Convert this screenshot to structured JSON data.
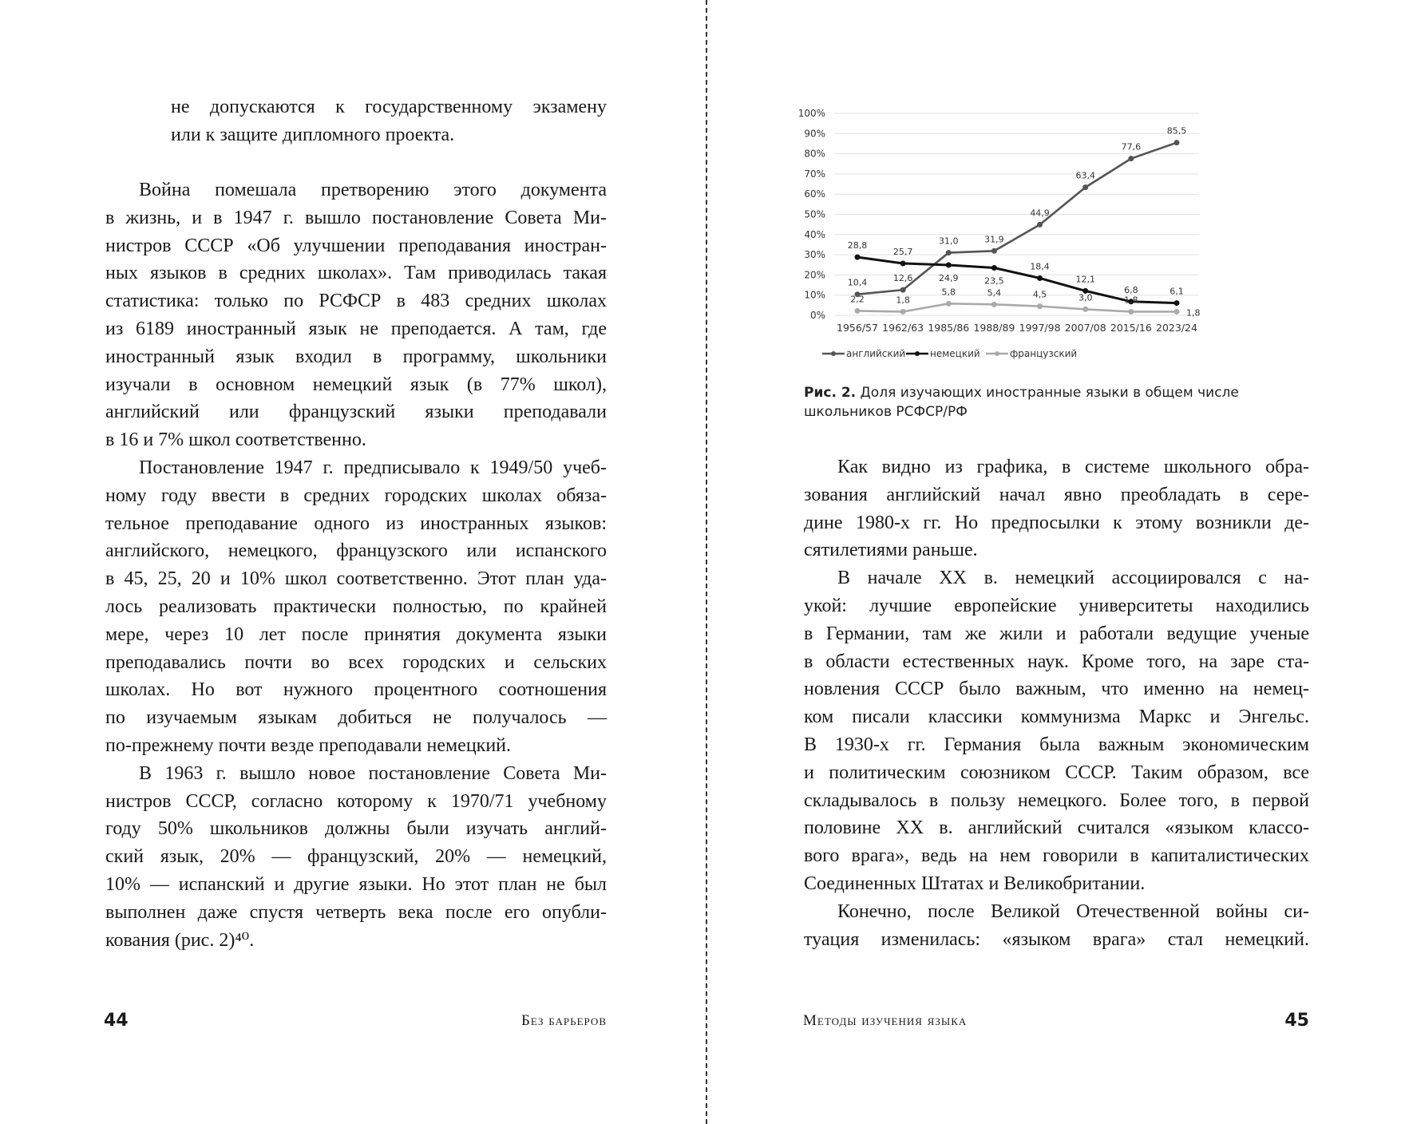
{
  "left_page": {
    "quote_lines": [
      "не допускаются к государственному экзамену",
      "или к защите дипломного проекта."
    ],
    "paragraphs": [
      [
        "Война помешала претворению этого документа",
        "в жизнь, и в 1947 г. вышло постановление Совета Ми-",
        "нистров СССР «Об улучшении преподавания иностран-",
        "ных языков в средних школах». Там приводилась такая",
        "статистика: только по РСФСР в 483 средних школах",
        "из 6189 иностранный язык не преподается. А там, где",
        "иностранный язык входил в программу, школьники",
        "изучали в основном немецкий язык (в 77% школ),",
        "английский или французский языки преподавали",
        "в 16 и 7% школ соответственно."
      ],
      [
        "Постановление 1947 г. предписывало к 1949/50 учеб-",
        "ному году ввести в средних городских школах обяза-",
        "тельное преподавание одного из иностранных языков:",
        "английского, немецкого, французского или испанского",
        "в 45, 25, 20 и 10% школ соответственно. Этот план уда-",
        "лось реализовать практически полностью, по крайней",
        "мере, через 10 лет после принятия документа языки",
        "преподавались почти во всех городских и сельских",
        "школах. Но вот нужного процентного соотношения",
        "по изучаемым языкам добиться не получалось —",
        "по-прежнему почти везде преподавали немецкий."
      ],
      [
        "В 1963 г. вышло новое постановление Совета Ми-",
        "нистров СССР, согласно которому к 1970/71 учебному",
        "году 50% школьников должны были изучать англий-",
        "ский язык, 20% — французский, 20% — немецкий,",
        "10% — испанский и другие языки. Но этот план не был",
        "выполнен даже спустя четверть века после его опубли-",
        "кования (рис. 2)⁴⁰."
      ]
    ],
    "page_number": "44",
    "running_head": "Без барьеров"
  },
  "right_page": {
    "caption_label": "Рис. 2.",
    "caption_text": " Доля изучающих иностранные языки в общем числе школьников РСФСР/РФ",
    "paragraphs": [
      [
        "Как видно из графика, в системе школьного обра-",
        "зования английский начал явно преобладать в сере-",
        "дине 1980-х гг. Но предпосылки к этому возникли де-",
        "сятилетиями раньше."
      ],
      [
        "В начале XX в. немецкий ассоциировался с на-",
        "укой: лучшие европейские университеты находились",
        "в Германии, там же жили и работали ведущие ученые",
        "в области естественных наук. Кроме того, на заре ста-",
        "новления СССР было важным, что именно на немец-",
        "ком писали классики коммунизма Маркс и Энгельс.",
        "В 1930-х гг. Германия была важным экономическим",
        "и политическим союзником СССР. Таким образом, все",
        "складывалось в пользу немецкого. Более того, в первой",
        "половине XX в. английский считался «языком классо-",
        "вого врага», ведь на нем говорили в капиталистических",
        "Соединенных Штатах и Великобритании."
      ],
      [
        "Конечно, после Великой Отечественной войны си-",
        "туация изменилась: «языком врага» стал немецкий."
      ]
    ],
    "last_line_justified": true,
    "page_number": "45",
    "running_head": "Методы изучения языка"
  },
  "chart_data": {
    "type": "line",
    "categories": [
      "1956/57",
      "1962/63",
      "1985/86",
      "1988/89",
      "1997/98",
      "2007/08",
      "2015/16",
      "2023/24"
    ],
    "series": [
      {
        "name": "английский",
        "color": "#555555",
        "values": [
          10.4,
          12.6,
          31.0,
          31.9,
          44.9,
          63.4,
          77.6,
          85.5
        ]
      },
      {
        "name": "немецкий",
        "color": "#111111",
        "values": [
          28.8,
          25.7,
          24.9,
          23.5,
          18.4,
          12.1,
          6.8,
          6.1
        ]
      },
      {
        "name": "французский",
        "color": "#aaaaaa",
        "values": [
          2.2,
          1.8,
          5.8,
          5.4,
          4.5,
          3.0,
          1.8,
          1.8
        ]
      }
    ],
    "yticks": [
      "0%",
      "10%",
      "20%",
      "30%",
      "40%",
      "50%",
      "60%",
      "70%",
      "80%",
      "90%",
      "100%"
    ],
    "ylim": [
      0,
      100
    ],
    "grid": true,
    "legend": "bottom",
    "data_labels": true
  }
}
